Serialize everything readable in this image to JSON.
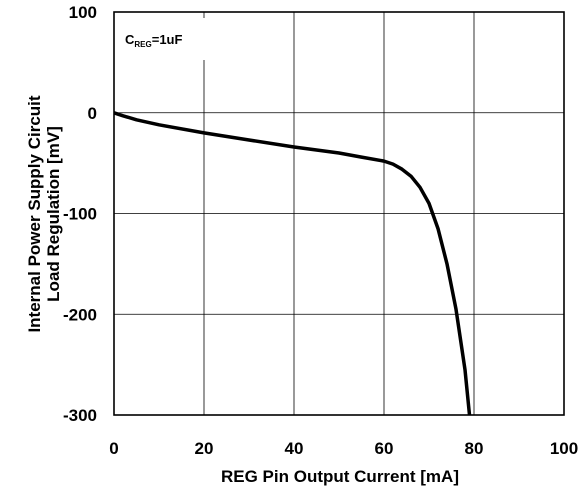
{
  "chart_data": {
    "type": "line",
    "xlabel": "REG Pin Output Current [mA]",
    "ylabel_lines": [
      "Internal Power Supply Circuit",
      "Load Regulation [mV]"
    ],
    "xlim": [
      0,
      100
    ],
    "ylim": [
      -300,
      100
    ],
    "x_ticks": [
      0,
      20,
      40,
      60,
      80,
      100
    ],
    "y_ticks": [
      100,
      0,
      -100,
      -200,
      -300
    ],
    "x_tick_labels": [
      "0",
      "20",
      "40",
      "60",
      "80",
      "100"
    ],
    "y_tick_labels": [
      "100",
      "0",
      "-100",
      "-200",
      "-300"
    ],
    "grid": true,
    "annotation": {
      "main": "C",
      "sub": "REG",
      "rest": "=1uF"
    },
    "series": [
      {
        "x": [
          0,
          2,
          5,
          10,
          20,
          30,
          40,
          50,
          55,
          60,
          62,
          64,
          66,
          68,
          70,
          72,
          74,
          76,
          78,
          79
        ],
        "y": [
          0,
          -3,
          -7,
          -12,
          -20,
          -27,
          -34,
          -40,
          -44,
          -48,
          -51,
          -56,
          -63,
          -74,
          -90,
          -115,
          -150,
          -195,
          -255,
          -300
        ]
      }
    ],
    "line_color": "#000000"
  }
}
